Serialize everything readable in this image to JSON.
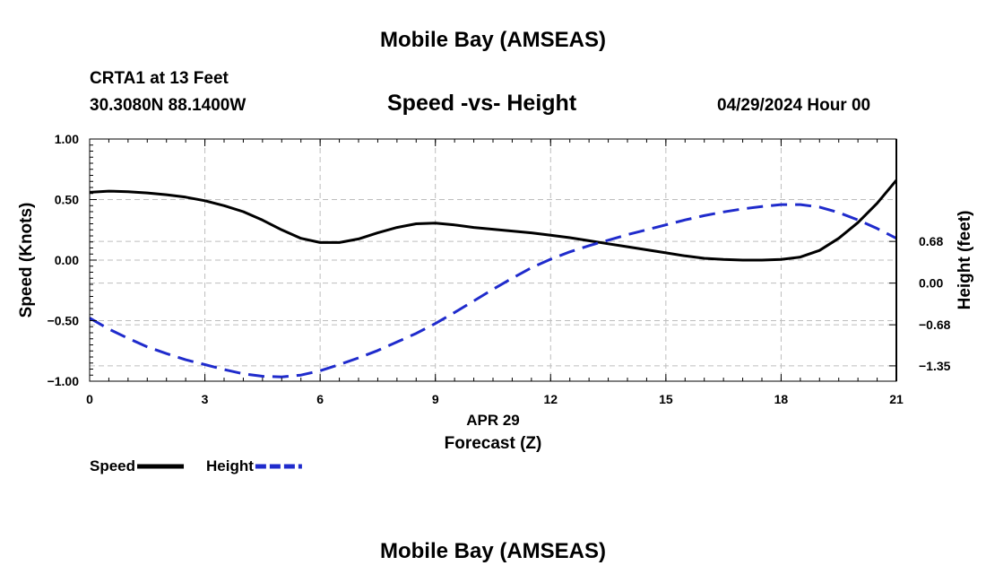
{
  "header": {
    "title": "Mobile Bay (AMSEAS)",
    "station": "CRTA1 at 13 Feet",
    "coords": "30.3080N  88.1400W",
    "chart_title": "Speed -vs- Height",
    "datetime": "04/29/2024 Hour 00"
  },
  "footer": {
    "title": "Mobile Bay (AMSEAS)"
  },
  "chart_data": {
    "type": "line",
    "title": "Speed -vs- Height",
    "xlabel": "Forecast (Z)",
    "xlabel_date": "APR 29",
    "ylabel": "Speed (Knots)",
    "y2label": "Height (feet)",
    "xlim": [
      0,
      21
    ],
    "ylim": [
      -1.0,
      1.0
    ],
    "y2lim": [
      -1.6,
      2.35
    ],
    "x_ticks": [
      0,
      3,
      6,
      9,
      12,
      15,
      18,
      21
    ],
    "x_tick_labels": [
      "0",
      "3",
      "6",
      "9",
      "12",
      "15",
      "18",
      "21"
    ],
    "y_ticks": [
      1.0,
      0.5,
      0.0,
      -0.5,
      -1.0
    ],
    "y_tick_labels": [
      "1.00",
      "0.50",
      "0.00",
      "−0.50",
      "−1.00"
    ],
    "y2_ticks": [
      0.68,
      0.0,
      -0.68,
      -1.35
    ],
    "y2_tick_labels": [
      "0.68",
      "0.00",
      "−0.68",
      "−1.35"
    ],
    "grid": true,
    "legend_position": "bottom-left",
    "series": [
      {
        "name": "Speed",
        "axis": "left",
        "color": "#000000",
        "style": "solid",
        "x": [
          0,
          0.5,
          1,
          1.5,
          2,
          2.5,
          3,
          3.5,
          4,
          4.5,
          5,
          5.5,
          6,
          6.5,
          7,
          7.5,
          8,
          8.5,
          9,
          9.5,
          10,
          10.5,
          11,
          11.5,
          12,
          12.5,
          13,
          13.5,
          14,
          14.5,
          15,
          15.5,
          16,
          16.5,
          17,
          17.5,
          18,
          18.5,
          19,
          19.5,
          20,
          20.5,
          21
        ],
        "values": [
          0.56,
          0.57,
          0.565,
          0.555,
          0.54,
          0.52,
          0.49,
          0.45,
          0.4,
          0.33,
          0.25,
          0.18,
          0.145,
          0.145,
          0.175,
          0.225,
          0.27,
          0.3,
          0.305,
          0.29,
          0.27,
          0.255,
          0.24,
          0.225,
          0.205,
          0.185,
          0.16,
          0.135,
          0.11,
          0.085,
          0.06,
          0.035,
          0.015,
          0.005,
          0.0,
          0.0,
          0.005,
          0.025,
          0.08,
          0.18,
          0.31,
          0.47,
          0.66
        ]
      },
      {
        "name": "Height",
        "axis": "right",
        "color": "#1f2bcc",
        "style": "dashed",
        "x": [
          0,
          0.5,
          1,
          1.5,
          2,
          2.5,
          3,
          3.5,
          4,
          4.5,
          5,
          5.5,
          6,
          6.5,
          7,
          7.5,
          8,
          8.5,
          9,
          9.5,
          10,
          10.5,
          11,
          11.5,
          12,
          12.5,
          13,
          13.5,
          14,
          14.5,
          15,
          15.5,
          16,
          16.5,
          17,
          17.5,
          18,
          18.5,
          19,
          19.5,
          20,
          20.5,
          21
        ],
        "values": [
          -0.57,
          -0.75,
          -0.9,
          -1.04,
          -1.15,
          -1.25,
          -1.33,
          -1.41,
          -1.48,
          -1.52,
          -1.53,
          -1.5,
          -1.43,
          -1.33,
          -1.22,
          -1.1,
          -0.96,
          -0.82,
          -0.66,
          -0.48,
          -0.29,
          -0.1,
          0.08,
          0.25,
          0.39,
          0.51,
          0.61,
          0.7,
          0.79,
          0.87,
          0.95,
          1.03,
          1.1,
          1.16,
          1.21,
          1.25,
          1.28,
          1.28,
          1.24,
          1.15,
          1.03,
          0.89,
          0.73
        ]
      }
    ],
    "legend": [
      {
        "label": "Speed",
        "color": "#000000",
        "style": "solid"
      },
      {
        "label": "Height",
        "color": "#1f2bcc",
        "style": "dashed"
      }
    ]
  }
}
